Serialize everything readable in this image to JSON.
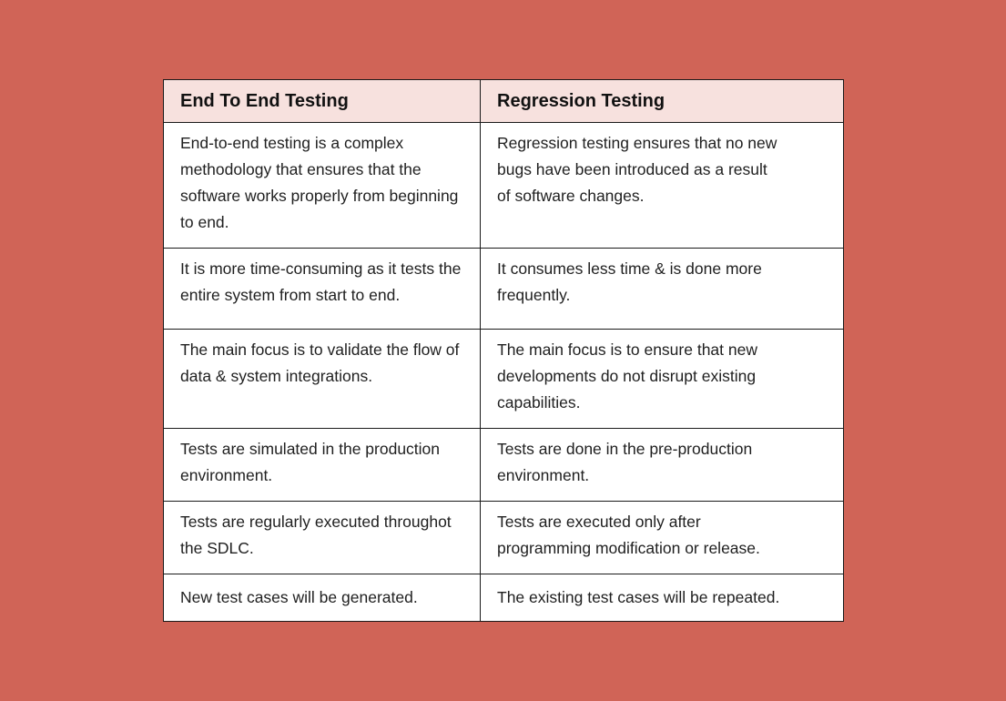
{
  "colors": {
    "background": "#D06457",
    "header_bg": "#F7E1DE",
    "border": "#1a1a1a"
  },
  "table": {
    "headers": [
      "End To End Testing",
      "Regression Testing"
    ],
    "rows": [
      [
        "End-to-end testing is a complex methodology that ensures that the software works properly from beginning to end.",
        "Regression testing ensures that no new bugs have been introduced as a result of software changes."
      ],
      [
        "It is more time-consuming as it tests the entire system from start to end.",
        "It consumes less time & is done more frequently."
      ],
      [
        "The main focus is to validate the flow of data & system integrations.",
        "The main focus is to ensure that new developments do not disrupt existing capabilities."
      ],
      [
        "Tests are simulated in the production environment.",
        "Tests are done in the pre-production environment."
      ],
      [
        "Tests are regularly executed throughot the SDLC.",
        "Tests are executed only after programming modification or release."
      ],
      [
        "New test cases will be generated.",
        "The existing test cases will be repeated."
      ]
    ]
  }
}
